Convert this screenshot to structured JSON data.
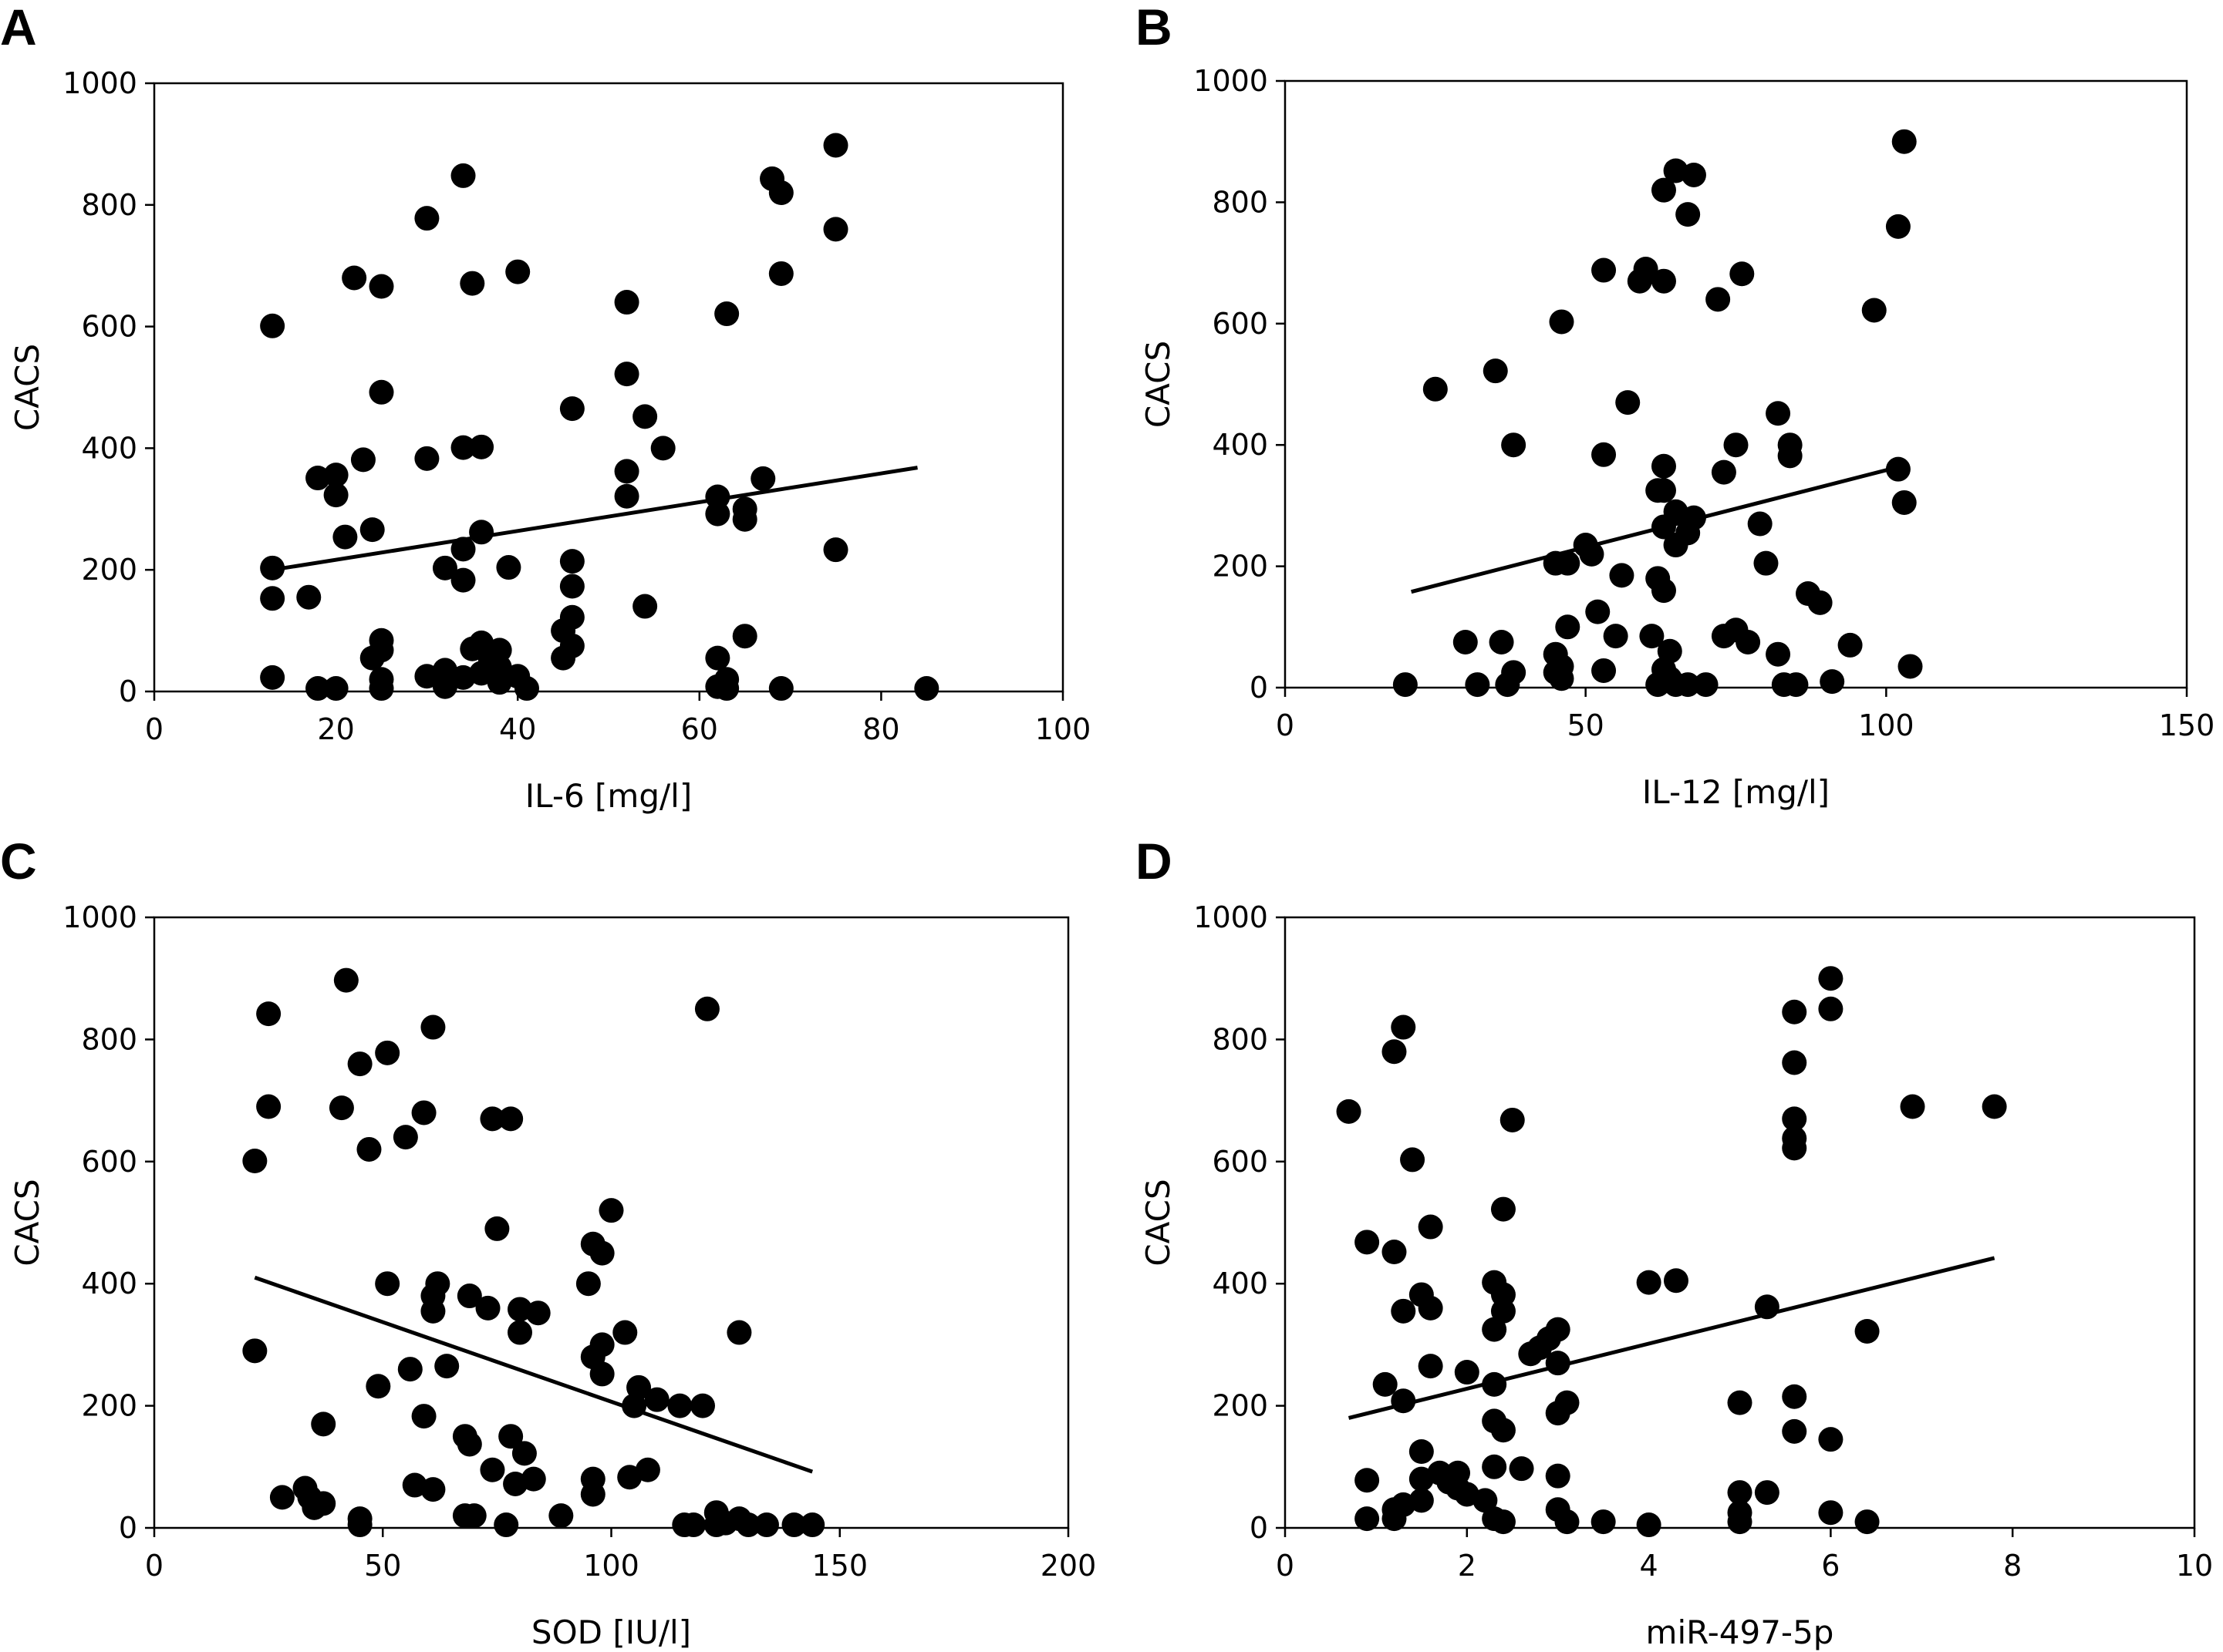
{
  "chart_data": [
    {
      "type": "scatter",
      "panel_label": "A",
      "xlabel": "IL-6 [mg/l]",
      "ylabel": "CACS",
      "xlim": [
        0,
        100
      ],
      "ylim": [
        0,
        1000
      ],
      "xticks": [
        0,
        20,
        40,
        60,
        80,
        100
      ],
      "yticks": [
        0,
        200,
        400,
        600,
        800,
        1000
      ],
      "trendline": [
        [
          13,
          200
        ],
        [
          84,
          368
        ]
      ],
      "points": [
        [
          13,
          601
        ],
        [
          13,
          203
        ],
        [
          13,
          153
        ],
        [
          13,
          23
        ],
        [
          17,
          155
        ],
        [
          18,
          5
        ],
        [
          18,
          351
        ],
        [
          20,
          356
        ],
        [
          20,
          323
        ],
        [
          20,
          5
        ],
        [
          21,
          254
        ],
        [
          22,
          680
        ],
        [
          23,
          381
        ],
        [
          24,
          266
        ],
        [
          24,
          55
        ],
        [
          25,
          666
        ],
        [
          25,
          492
        ],
        [
          25,
          84
        ],
        [
          25,
          68
        ],
        [
          25,
          20
        ],
        [
          25,
          5
        ],
        [
          30,
          778
        ],
        [
          30,
          383
        ],
        [
          30,
          25
        ],
        [
          32,
          203
        ],
        [
          32,
          35
        ],
        [
          32,
          20
        ],
        [
          32,
          8
        ],
        [
          34,
          848
        ],
        [
          34,
          401
        ],
        [
          34,
          234
        ],
        [
          34,
          183
        ],
        [
          34,
          23
        ],
        [
          35,
          671
        ],
        [
          35,
          70
        ],
        [
          36,
          402
        ],
        [
          36,
          262
        ],
        [
          36,
          80
        ],
        [
          36,
          30
        ],
        [
          37,
          52
        ],
        [
          38,
          68
        ],
        [
          38,
          40
        ],
        [
          38,
          15
        ],
        [
          39,
          204
        ],
        [
          40,
          690
        ],
        [
          40,
          25
        ],
        [
          41,
          5
        ],
        [
          45,
          100
        ],
        [
          45,
          55
        ],
        [
          46,
          465
        ],
        [
          46,
          214
        ],
        [
          46,
          173
        ],
        [
          46,
          122
        ],
        [
          46,
          75
        ],
        [
          52,
          640
        ],
        [
          52,
          522
        ],
        [
          52,
          362
        ],
        [
          52,
          321
        ],
        [
          54,
          452
        ],
        [
          54,
          140
        ],
        [
          56,
          400
        ],
        [
          62,
          320
        ],
        [
          62,
          292
        ],
        [
          62,
          55
        ],
        [
          62,
          8
        ],
        [
          63,
          621
        ],
        [
          63,
          20
        ],
        [
          63,
          5
        ],
        [
          65,
          300
        ],
        [
          65,
          283
        ],
        [
          65,
          91
        ],
        [
          67,
          350
        ],
        [
          68,
          843
        ],
        [
          69,
          820
        ],
        [
          69,
          687
        ],
        [
          69,
          5
        ],
        [
          75,
          898
        ],
        [
          75,
          760
        ],
        [
          75,
          233
        ],
        [
          85,
          5
        ]
      ]
    },
    {
      "type": "scatter",
      "panel_label": "B",
      "xlabel": "IL-12 [mg/l]",
      "ylabel": "CACS",
      "xlim": [
        0,
        150
      ],
      "ylim": [
        0,
        1000
      ],
      "xticks": [
        0,
        50,
        100,
        150
      ],
      "yticks": [
        0,
        200,
        400,
        600,
        800,
        1000
      ],
      "trendline": [
        [
          21,
          158
        ],
        [
          103,
          366
        ]
      ],
      "points": [
        [
          20,
          5
        ],
        [
          25,
          492
        ],
        [
          30,
          75
        ],
        [
          32,
          5
        ],
        [
          35,
          522
        ],
        [
          36,
          75
        ],
        [
          37,
          5
        ],
        [
          38,
          25
        ],
        [
          38,
          400
        ],
        [
          45,
          205
        ],
        [
          45,
          55
        ],
        [
          45,
          25
        ],
        [
          46,
          603
        ],
        [
          46,
          35
        ],
        [
          46,
          15
        ],
        [
          47,
          205
        ],
        [
          47,
          100
        ],
        [
          50,
          235
        ],
        [
          51,
          220
        ],
        [
          52,
          125
        ],
        [
          53,
          688
        ],
        [
          53,
          384
        ],
        [
          53,
          28
        ],
        [
          55,
          85
        ],
        [
          56,
          185
        ],
        [
          57,
          470
        ],
        [
          59,
          670
        ],
        [
          60,
          690
        ],
        [
          61,
          85
        ],
        [
          62,
          325
        ],
        [
          62,
          180
        ],
        [
          62,
          5
        ],
        [
          63,
          820
        ],
        [
          63,
          670
        ],
        [
          63,
          365
        ],
        [
          63,
          325
        ],
        [
          63,
          265
        ],
        [
          63,
          160
        ],
        [
          63,
          30
        ],
        [
          64,
          60
        ],
        [
          64,
          15
        ],
        [
          65,
          852
        ],
        [
          65,
          290
        ],
        [
          65,
          235
        ],
        [
          65,
          5
        ],
        [
          67,
          780
        ],
        [
          67,
          255
        ],
        [
          67,
          5
        ],
        [
          68,
          845
        ],
        [
          68,
          280
        ],
        [
          70,
          5
        ],
        [
          72,
          640
        ],
        [
          73,
          355
        ],
        [
          73,
          85
        ],
        [
          75,
          400
        ],
        [
          75,
          95
        ],
        [
          76,
          682
        ],
        [
          77,
          75
        ],
        [
          79,
          270
        ],
        [
          80,
          205
        ],
        [
          82,
          452
        ],
        [
          82,
          55
        ],
        [
          83,
          5
        ],
        [
          84,
          400
        ],
        [
          84,
          382
        ],
        [
          85,
          5
        ],
        [
          87,
          155
        ],
        [
          89,
          140
        ],
        [
          91,
          10
        ],
        [
          94,
          70
        ],
        [
          98,
          622
        ],
        [
          102,
          760
        ],
        [
          102,
          360
        ],
        [
          103,
          900
        ],
        [
          103,
          305
        ],
        [
          104,
          35
        ]
      ]
    },
    {
      "type": "scatter",
      "panel_label": "C",
      "xlabel": "SOD [IU/l]",
      "ylabel": "CACS",
      "xlim": [
        0,
        200
      ],
      "ylim": [
        0,
        1000
      ],
      "xticks": [
        0,
        50,
        100,
        150,
        200
      ],
      "yticks": [
        0,
        200,
        400,
        600,
        800,
        1000
      ],
      "trendline": [
        [
          22,
          410
        ],
        [
          144,
          92
        ]
      ],
      "points": [
        [
          22,
          601
        ],
        [
          22,
          290
        ],
        [
          25,
          842
        ],
        [
          25,
          690
        ],
        [
          28,
          50
        ],
        [
          33,
          65
        ],
        [
          34,
          50
        ],
        [
          35,
          33
        ],
        [
          37,
          170
        ],
        [
          37,
          40
        ],
        [
          41,
          688
        ],
        [
          42,
          897
        ],
        [
          45,
          760
        ],
        [
          45,
          15
        ],
        [
          45,
          5
        ],
        [
          47,
          620
        ],
        [
          49,
          232
        ],
        [
          51,
          778
        ],
        [
          51,
          400
        ],
        [
          55,
          640
        ],
        [
          56,
          260
        ],
        [
          57,
          70
        ],
        [
          59,
          680
        ],
        [
          59,
          183
        ],
        [
          61,
          820
        ],
        [
          61,
          380
        ],
        [
          61,
          355
        ],
        [
          61,
          63
        ],
        [
          62,
          400
        ],
        [
          64,
          265
        ],
        [
          68,
          20
        ],
        [
          68,
          150
        ],
        [
          69,
          380
        ],
        [
          69,
          137
        ],
        [
          70,
          20
        ],
        [
          73,
          360
        ],
        [
          74,
          670
        ],
        [
          74,
          95
        ],
        [
          75,
          490
        ],
        [
          77,
          5
        ],
        [
          78,
          670
        ],
        [
          78,
          150
        ],
        [
          79,
          72
        ],
        [
          80,
          320
        ],
        [
          80,
          358
        ],
        [
          81,
          122
        ],
        [
          83,
          80
        ],
        [
          84,
          352
        ],
        [
          89,
          20
        ],
        [
          95,
          400
        ],
        [
          96,
          465
        ],
        [
          96,
          280
        ],
        [
          96,
          80
        ],
        [
          96,
          55
        ],
        [
          98,
          450
        ],
        [
          98,
          252
        ],
        [
          98,
          300
        ],
        [
          100,
          520
        ],
        [
          103,
          320
        ],
        [
          104,
          83
        ],
        [
          105,
          200
        ],
        [
          106,
          230
        ],
        [
          108,
          95
        ],
        [
          110,
          210
        ],
        [
          115,
          200
        ],
        [
          116,
          5
        ],
        [
          118,
          5
        ],
        [
          120,
          200
        ],
        [
          121,
          850
        ],
        [
          123,
          25
        ],
        [
          123,
          5
        ],
        [
          125,
          8
        ],
        [
          128,
          320
        ],
        [
          128,
          15
        ],
        [
          130,
          5
        ],
        [
          134,
          5
        ],
        [
          140,
          5
        ],
        [
          144,
          5
        ]
      ]
    },
    {
      "type": "scatter",
      "panel_label": "D",
      "xlabel": "miR-497-5p",
      "ylabel": "CACS",
      "xlim": [
        0,
        10
      ],
      "ylim": [
        0,
        1000
      ],
      "xticks": [
        0,
        2,
        4,
        6,
        8,
        10
      ],
      "yticks": [
        0,
        200,
        400,
        600,
        800,
        1000
      ],
      "trendline": [
        [
          0.7,
          180
        ],
        [
          7.8,
          442
        ]
      ],
      "points": [
        [
          0.7,
          682
        ],
        [
          0.9,
          468
        ],
        [
          0.9,
          78
        ],
        [
          0.9,
          15
        ],
        [
          1.1,
          235
        ],
        [
          1.2,
          780
        ],
        [
          1.2,
          452
        ],
        [
          1.2,
          30
        ],
        [
          1.2,
          15
        ],
        [
          1.3,
          820
        ],
        [
          1.3,
          355
        ],
        [
          1.3,
          208
        ],
        [
          1.3,
          38
        ],
        [
          1.4,
          603
        ],
        [
          1.5,
          382
        ],
        [
          1.5,
          125
        ],
        [
          1.5,
          80
        ],
        [
          1.5,
          45
        ],
        [
          1.6,
          493
        ],
        [
          1.6,
          360
        ],
        [
          1.6,
          265
        ],
        [
          1.7,
          90
        ],
        [
          1.8,
          75
        ],
        [
          1.9,
          90
        ],
        [
          1.9,
          65
        ],
        [
          2.0,
          255
        ],
        [
          2.0,
          55
        ],
        [
          2.2,
          45
        ],
        [
          2.3,
          402
        ],
        [
          2.3,
          325
        ],
        [
          2.3,
          235
        ],
        [
          2.3,
          175
        ],
        [
          2.3,
          100
        ],
        [
          2.3,
          15
        ],
        [
          2.4,
          522
        ],
        [
          2.4,
          382
        ],
        [
          2.4,
          355
        ],
        [
          2.4,
          160
        ],
        [
          2.4,
          10
        ],
        [
          2.5,
          668
        ],
        [
          2.6,
          97
        ],
        [
          2.7,
          285
        ],
        [
          2.8,
          295
        ],
        [
          2.9,
          310
        ],
        [
          3.0,
          325
        ],
        [
          3.0,
          270
        ],
        [
          3.0,
          188
        ],
        [
          3.0,
          85
        ],
        [
          3.0,
          30
        ],
        [
          3.1,
          205
        ],
        [
          3.1,
          10
        ],
        [
          3.5,
          10
        ],
        [
          4.0,
          402
        ],
        [
          4.0,
          5
        ],
        [
          4.3,
          405
        ],
        [
          5.0,
          205
        ],
        [
          5.0,
          58
        ],
        [
          5.0,
          25
        ],
        [
          5.0,
          10
        ],
        [
          5.3,
          362
        ],
        [
          5.3,
          58
        ],
        [
          5.6,
          845
        ],
        [
          5.6,
          762
        ],
        [
          5.6,
          670
        ],
        [
          5.6,
          638
        ],
        [
          5.6,
          622
        ],
        [
          5.6,
          215
        ],
        [
          5.6,
          158
        ],
        [
          6.0,
          900
        ],
        [
          6.0,
          850
        ],
        [
          6.0,
          145
        ],
        [
          6.0,
          25
        ],
        [
          6.4,
          322
        ],
        [
          6.4,
          10
        ],
        [
          6.9,
          690
        ],
        [
          7.8,
          690
        ]
      ]
    }
  ]
}
